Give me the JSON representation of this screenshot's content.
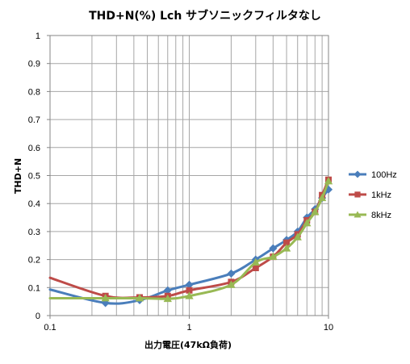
{
  "chart_data": {
    "type": "line",
    "title": "THD+N(%) Lch サブソニックフィルタなし",
    "xlabel": "出力電圧(47kΩ負荷)",
    "ylabel": "THD+N",
    "x_scale": "log",
    "xlim": [
      0.1,
      10
    ],
    "ylim": [
      0,
      1
    ],
    "x_ticks": [
      "0.1",
      "1",
      "10"
    ],
    "y_ticks": [
      "0",
      "0.1",
      "0.2",
      "0.3",
      "0.4",
      "0.5",
      "0.6",
      "0.7",
      "0.8",
      "0.9",
      "1"
    ],
    "grid": true,
    "legend_position": "right",
    "series": [
      {
        "name": "100Hz",
        "color": "#4a7ebb",
        "marker": "diamond",
        "points": [
          [
            0.1,
            0.093
          ],
          [
            0.25,
            0.045
          ],
          [
            0.44,
            0.055
          ],
          [
            0.7,
            0.09
          ],
          [
            1.0,
            0.11
          ],
          [
            2.0,
            0.15
          ],
          [
            3.0,
            0.2
          ],
          [
            4.0,
            0.24
          ],
          [
            5.0,
            0.27
          ],
          [
            6.0,
            0.3
          ],
          [
            7.0,
            0.35
          ],
          [
            8.0,
            0.38
          ],
          [
            9.0,
            0.42
          ],
          [
            10.0,
            0.45
          ]
        ]
      },
      {
        "name": "1kHz",
        "color": "#be4b48",
        "marker": "square",
        "points": [
          [
            0.1,
            0.135
          ],
          [
            0.25,
            0.07
          ],
          [
            0.44,
            0.065
          ],
          [
            0.7,
            0.07
          ],
          [
            1.0,
            0.09
          ],
          [
            2.0,
            0.12
          ],
          [
            3.0,
            0.17
          ],
          [
            4.0,
            0.21
          ],
          [
            5.0,
            0.26
          ],
          [
            6.0,
            0.29
          ],
          [
            7.0,
            0.34
          ],
          [
            8.0,
            0.37
          ],
          [
            9.0,
            0.43
          ],
          [
            10.0,
            0.485
          ]
        ]
      },
      {
        "name": "8kHz",
        "color": "#98b954",
        "marker": "triangle",
        "points": [
          [
            0.1,
            0.062
          ],
          [
            0.25,
            0.062
          ],
          [
            0.44,
            0.062
          ],
          [
            0.7,
            0.06
          ],
          [
            1.0,
            0.07
          ],
          [
            2.0,
            0.11
          ],
          [
            3.0,
            0.19
          ],
          [
            4.0,
            0.21
          ],
          [
            5.0,
            0.24
          ],
          [
            6.0,
            0.28
          ],
          [
            7.0,
            0.33
          ],
          [
            8.0,
            0.37
          ],
          [
            9.0,
            0.42
          ],
          [
            10.0,
            0.48
          ]
        ]
      }
    ]
  }
}
